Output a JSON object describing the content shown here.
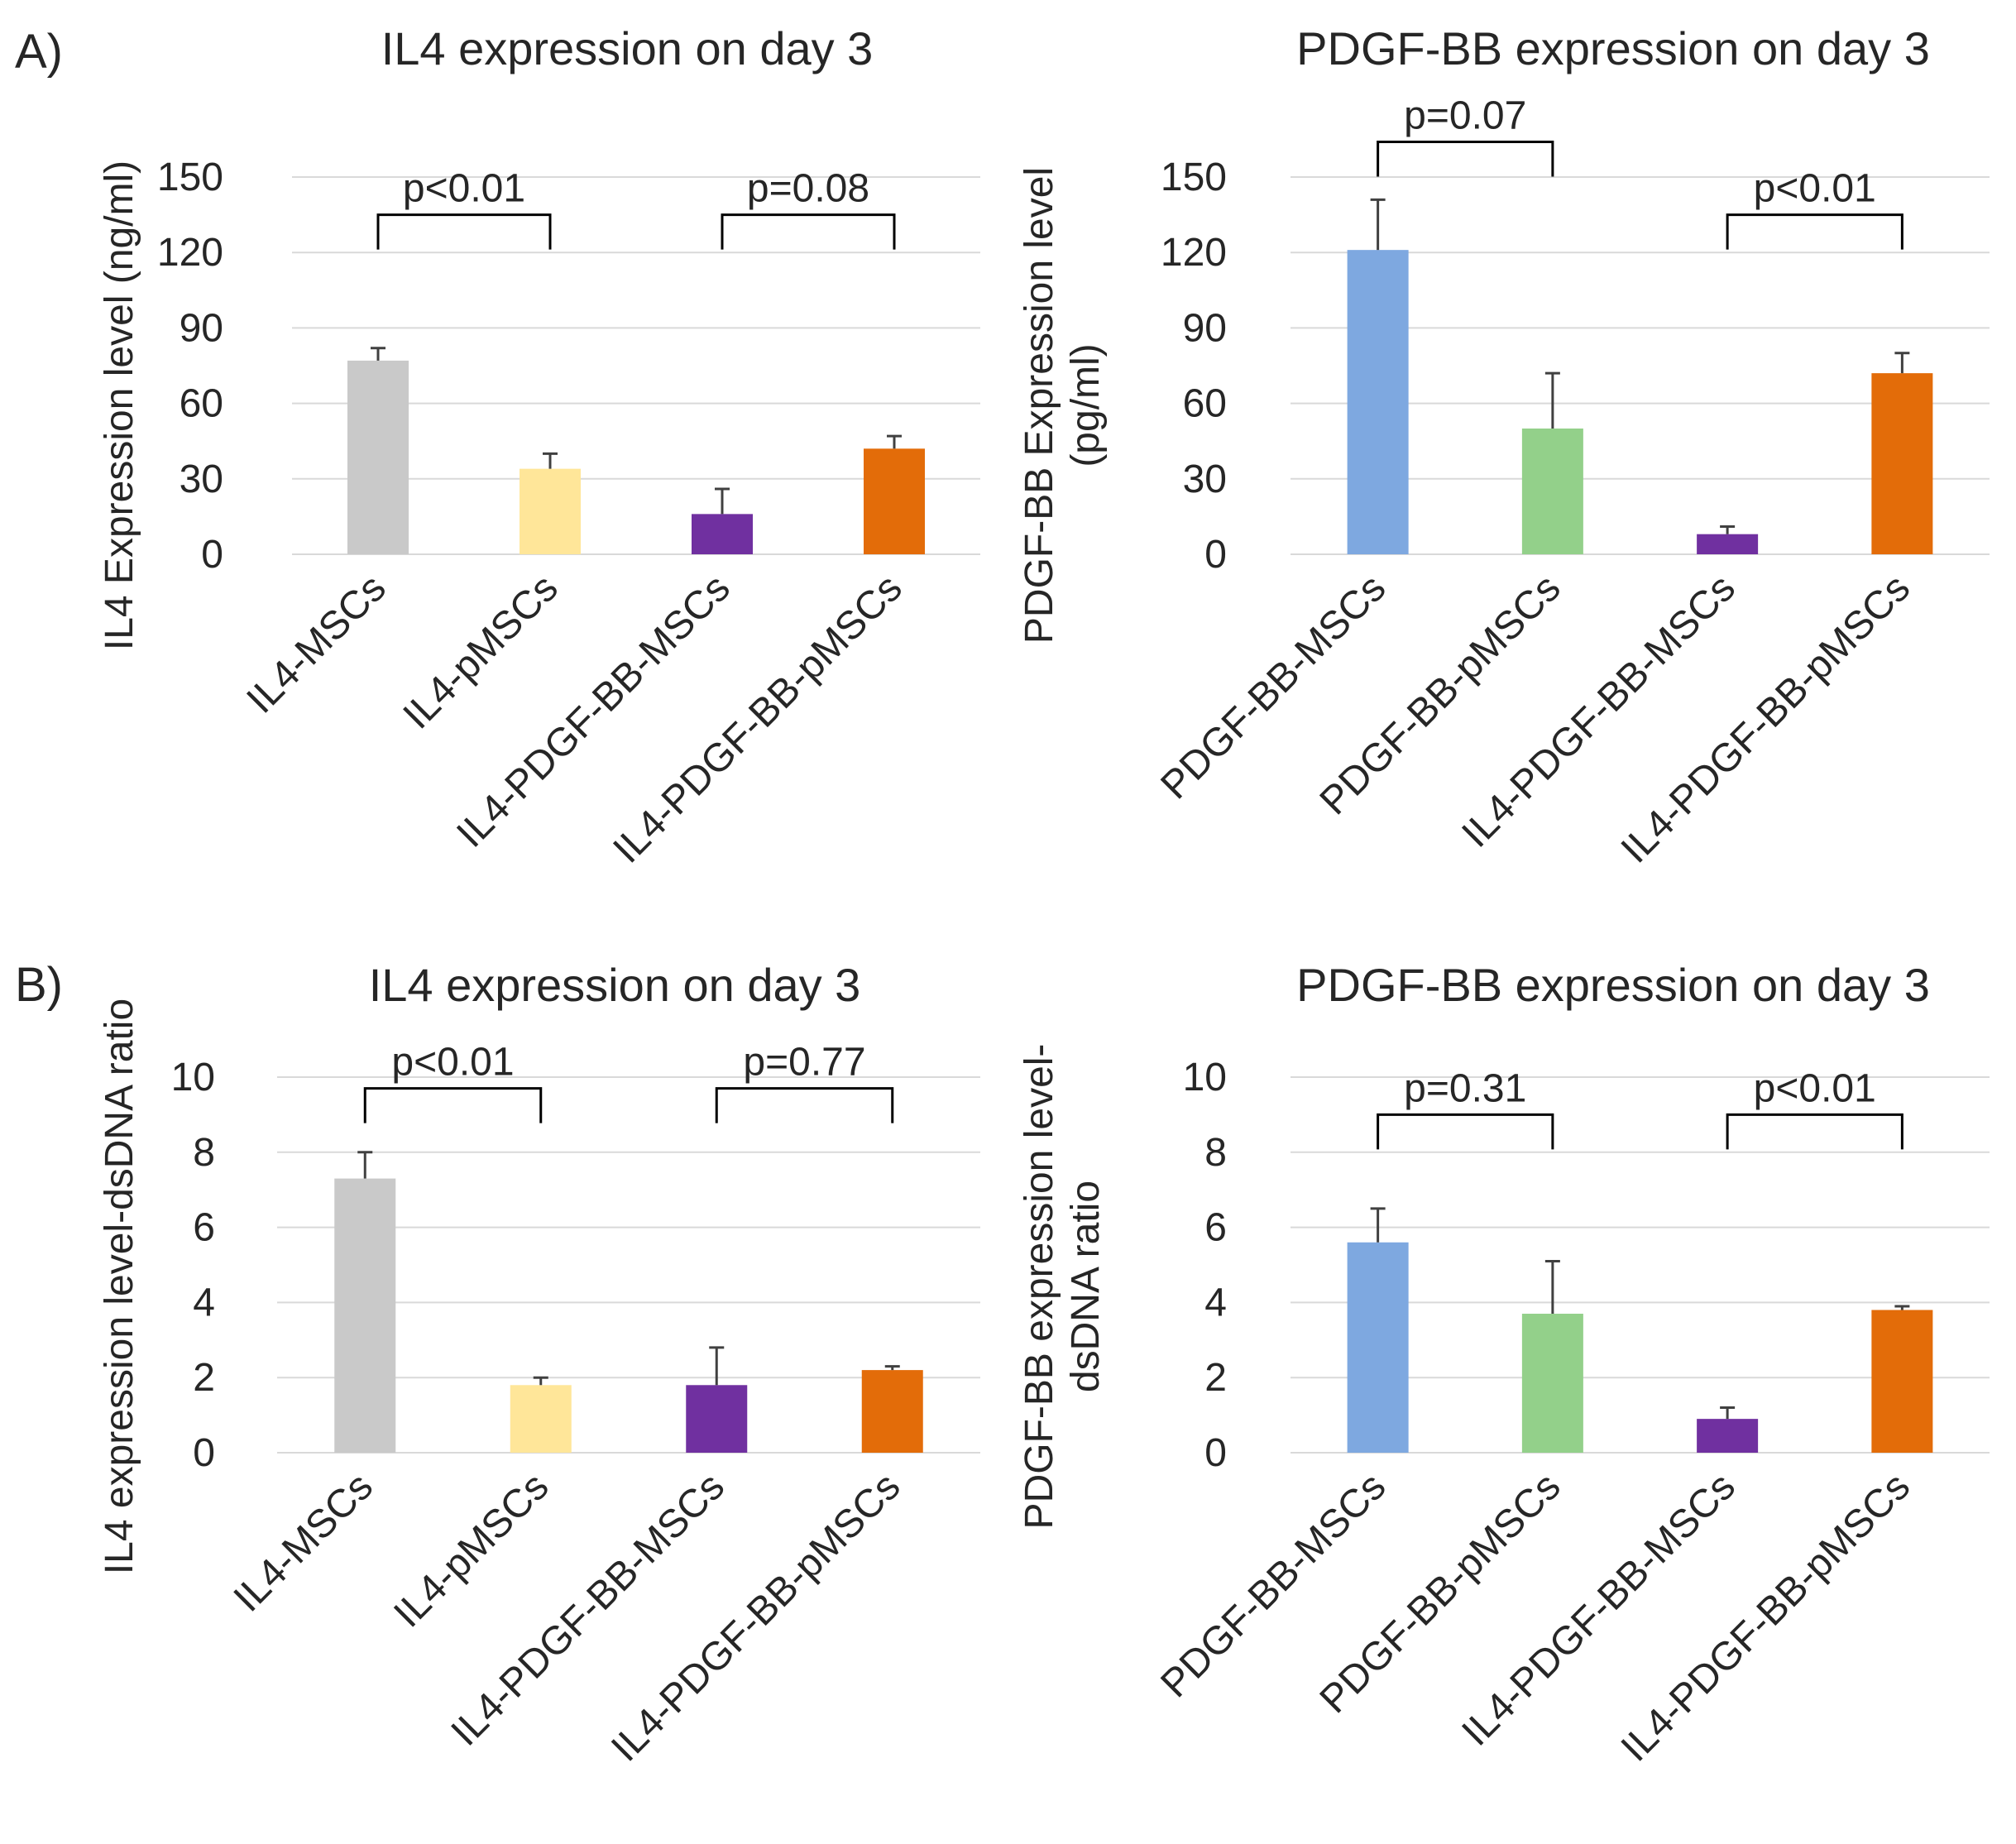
{
  "panel_labels": [
    "A)",
    "B)"
  ],
  "colors": {
    "gray": "#c9c9c9",
    "yellow": "#ffe699",
    "purple": "#7030a0",
    "orange": "#e36c09",
    "blue": "#7ea8e0",
    "green": "#93d08a"
  },
  "chart_data": [
    {
      "type": "bar",
      "title": "IL4 expression on day 3",
      "ylabel": [
        "IL4 Expression level (ng/ml)"
      ],
      "xlabel": "",
      "ylim": [
        0,
        150
      ],
      "yticks": [
        0,
        30,
        60,
        90,
        120,
        150
      ],
      "categories": [
        "IL4-MSCs",
        "IL4-pMSCs",
        "IL4-PDGF-BB-MSCs",
        "IL4-PDGF-BB-pMSCs"
      ],
      "values": [
        77,
        34,
        16,
        42
      ],
      "errors": [
        5,
        6,
        10,
        5
      ],
      "bar_colors": [
        "gray",
        "yellow",
        "purple",
        "orange"
      ],
      "grid": true,
      "significance": [
        {
          "label": "p<0.01",
          "from": 0,
          "to": 1,
          "level": 135
        },
        {
          "label": "p=0.08",
          "from": 2,
          "to": 3,
          "level": 135
        }
      ]
    },
    {
      "type": "bar",
      "title": "PDGF-BB expression on day 3",
      "ylabel": [
        "PDGF-BB Expression level",
        "(pg/ml)"
      ],
      "xlabel": "",
      "ylim": [
        0,
        150
      ],
      "yticks": [
        0,
        30,
        60,
        90,
        120,
        150
      ],
      "categories": [
        "PDGF-BB-MSCs",
        "PDGF-BB-pMSCs",
        "IL4-PDGF-BB-MSCs",
        "IL4-PDGF-BB-pMSCs"
      ],
      "values": [
        121,
        50,
        8,
        72
      ],
      "errors": [
        20,
        22,
        3,
        8
      ],
      "bar_colors": [
        "blue",
        "green",
        "purple",
        "orange"
      ],
      "grid": true,
      "significance": [
        {
          "label": "p=0.07",
          "from": 0,
          "to": 1,
          "level": 164
        },
        {
          "label": "p<0.01",
          "from": 2,
          "to": 3,
          "level": 135
        }
      ]
    },
    {
      "type": "bar",
      "title": "IL4 expression on day 3",
      "ylabel": [
        "IL4 expression level-dsDNA ratio"
      ],
      "xlabel": "",
      "ylim": [
        0,
        10
      ],
      "yticks": [
        0,
        2,
        4,
        6,
        8,
        10
      ],
      "categories": [
        "IL4-MSCs",
        "IL4-pMSCs",
        "IL4-PDGF-BB-MSCs",
        "IL4-PDGF-BB-pMSCs"
      ],
      "values": [
        7.3,
        1.8,
        1.8,
        2.2
      ],
      "errors": [
        0.7,
        0.2,
        1.0,
        0.1
      ],
      "bar_colors": [
        "gray",
        "yellow",
        "purple",
        "orange"
      ],
      "grid": true,
      "significance": [
        {
          "label": "p<0.01",
          "from": 0,
          "to": 1,
          "level": 9.7
        },
        {
          "label": "p=0.77",
          "from": 2,
          "to": 3,
          "level": 9.7
        }
      ]
    },
    {
      "type": "bar",
      "title": "PDGF-BB expression on day 3",
      "ylabel": [
        "PDGF-BB expression level-",
        "dsDNA ratio"
      ],
      "xlabel": "",
      "ylim": [
        0,
        10
      ],
      "yticks": [
        0,
        2,
        4,
        6,
        8,
        10
      ],
      "categories": [
        "PDGF-BB-MSCs",
        "PDGF-BB-pMSCs",
        "IL4-PDGF-BB-MSCs",
        "IL4-PDGF-BB-pMSCs"
      ],
      "values": [
        5.6,
        3.7,
        0.9,
        3.8
      ],
      "errors": [
        0.9,
        1.4,
        0.3,
        0.1
      ],
      "bar_colors": [
        "blue",
        "green",
        "purple",
        "orange"
      ],
      "grid": true,
      "significance": [
        {
          "label": "p=0.31",
          "from": 0,
          "to": 1,
          "level": 9.0
        },
        {
          "label": "p<0.01",
          "from": 2,
          "to": 3,
          "level": 9.0
        }
      ]
    }
  ]
}
